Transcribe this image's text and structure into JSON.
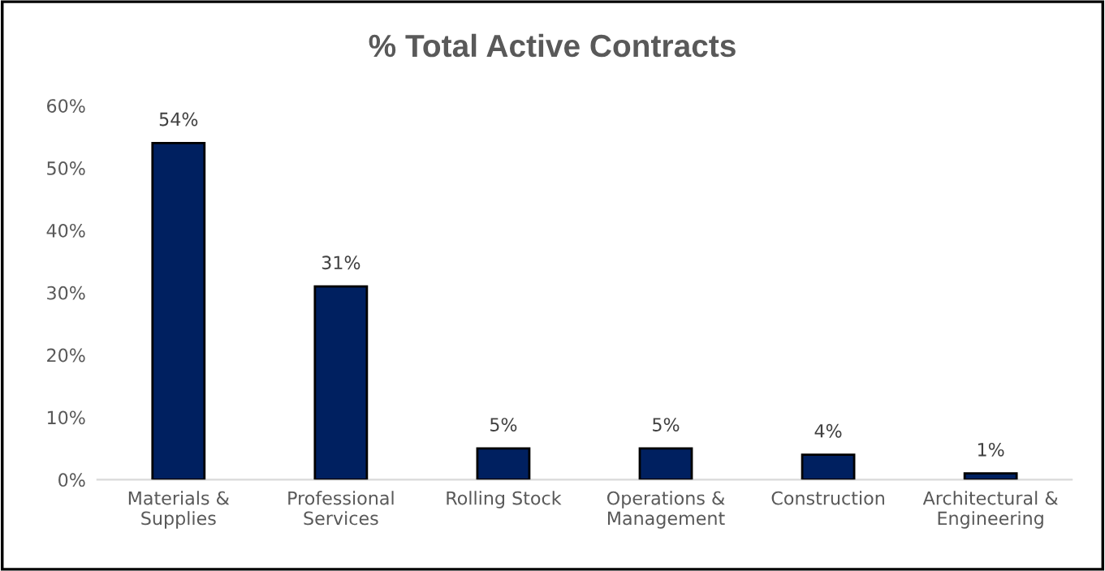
{
  "chart_data": {
    "type": "bar",
    "title": "% Total Active Contracts",
    "categories": [
      "Materials &\nSupplies",
      "Professional\nServices",
      "Rolling Stock",
      "Operations &\nManagement",
      "Construction",
      "Architectural &\nEngineering"
    ],
    "values": [
      54,
      31,
      5,
      5,
      4,
      1
    ],
    "value_labels": [
      "54%",
      "31%",
      "5%",
      "5%",
      "4%",
      "1%"
    ],
    "color": "#002060",
    "ylim": [
      0,
      60
    ],
    "yticks": [
      {
        "value": 0,
        "label": "0%"
      },
      {
        "value": 10,
        "label": "10%"
      },
      {
        "value": 20,
        "label": "20%"
      },
      {
        "value": 30,
        "label": "30%"
      },
      {
        "value": 40,
        "label": "40%"
      },
      {
        "value": 50,
        "label": "50%"
      },
      {
        "value": 60,
        "label": "60%"
      }
    ],
    "grid": false,
    "legend": false
  }
}
